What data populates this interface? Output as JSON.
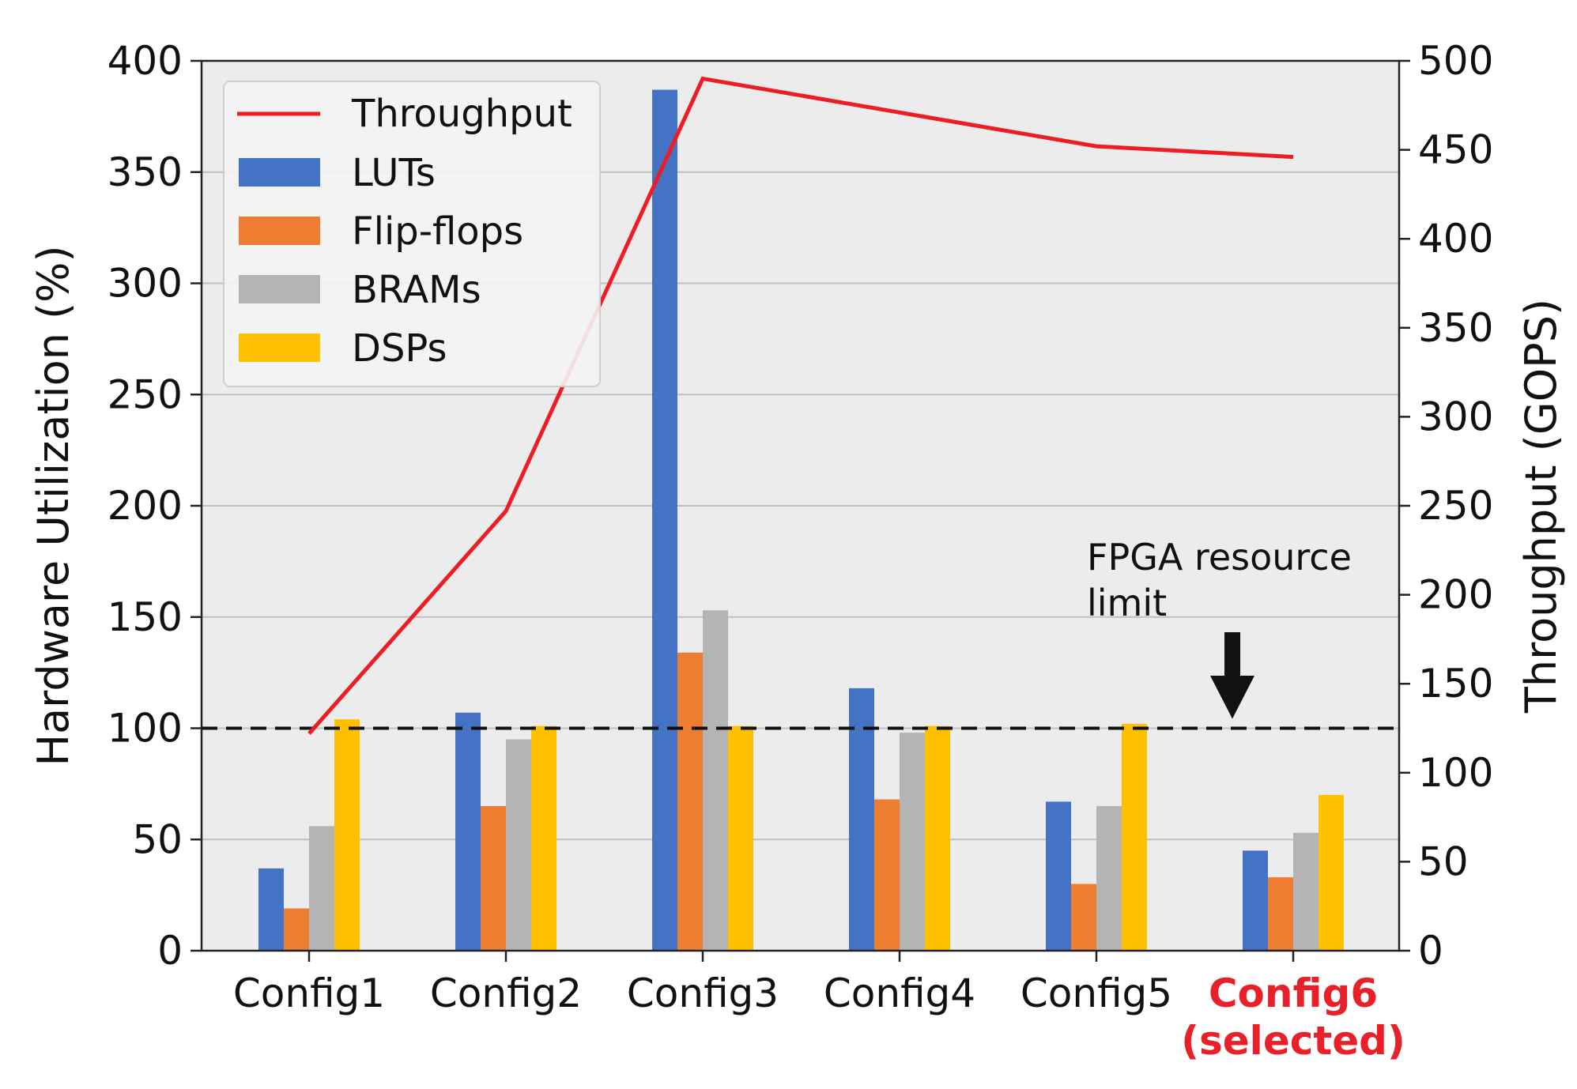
{
  "chart_data": {
    "type": "bar",
    "categories": [
      "Config1",
      "Config2",
      "Config3",
      "Config4",
      "Config5",
      "Config6"
    ],
    "selected_category_index": 5,
    "selected_suffix": "(selected)",
    "series": [
      {
        "name": "LUTs",
        "color": "#4472c4",
        "values": [
          37,
          107,
          387,
          118,
          67,
          45
        ]
      },
      {
        "name": "Flip-flops",
        "color": "#ed7d31",
        "values": [
          19,
          65,
          134,
          68,
          30,
          33
        ]
      },
      {
        "name": "BRAMs",
        "color": "#b4b4b4",
        "values": [
          56,
          95,
          153,
          98,
          65,
          53
        ]
      },
      {
        "name": "DSPs",
        "color": "#ffc000",
        "values": [
          104,
          101,
          101,
          101,
          102,
          70
        ]
      }
    ],
    "line_series": {
      "name": "Throughput",
      "color": "#ee1c25",
      "axis": "right",
      "values": [
        122,
        247,
        490,
        471,
        452,
        446
      ]
    },
    "ylabel": "Hardware Utilization (%)",
    "ylabel_right": "Throughput (GOPS)",
    "ylim": [
      0,
      400
    ],
    "ylim_right": [
      0,
      500
    ],
    "yticks": [
      0,
      50,
      100,
      150,
      200,
      250,
      300,
      350,
      400
    ],
    "yticks_right": [
      0,
      50,
      100,
      150,
      200,
      250,
      300,
      350,
      400,
      450,
      500
    ],
    "grid": true,
    "legend_position": "top-left",
    "reference_line": {
      "value": 100,
      "style": "dashed",
      "color": "#111111"
    },
    "annotation": {
      "lines": [
        "FPGA resource",
        "limit"
      ],
      "target_category_index": 5,
      "target_value": 100,
      "arrow_color": "#111111"
    },
    "selected_color": "#e8202a",
    "plot_background": "#ebeceb"
  }
}
